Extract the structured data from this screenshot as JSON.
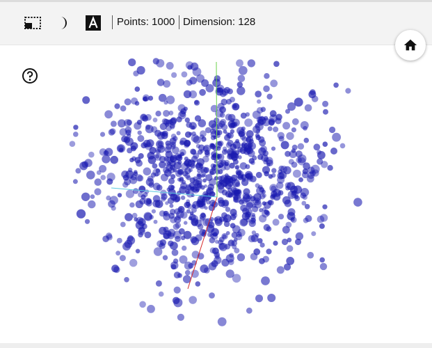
{
  "toolbar": {
    "points_text": "Points: 1000",
    "dimension_text": "Dimension: 128",
    "icons": [
      "selection-mode-icon",
      "night-mode-icon",
      "labels-icon",
      "home-icon",
      "help-icon"
    ]
  },
  "scatter": {
    "num_points": 1000,
    "point_color": "#1a1ab0",
    "axis_colors": {
      "x": "#d62828",
      "y": "#6ad24a",
      "z": "#5ac8e0"
    }
  }
}
